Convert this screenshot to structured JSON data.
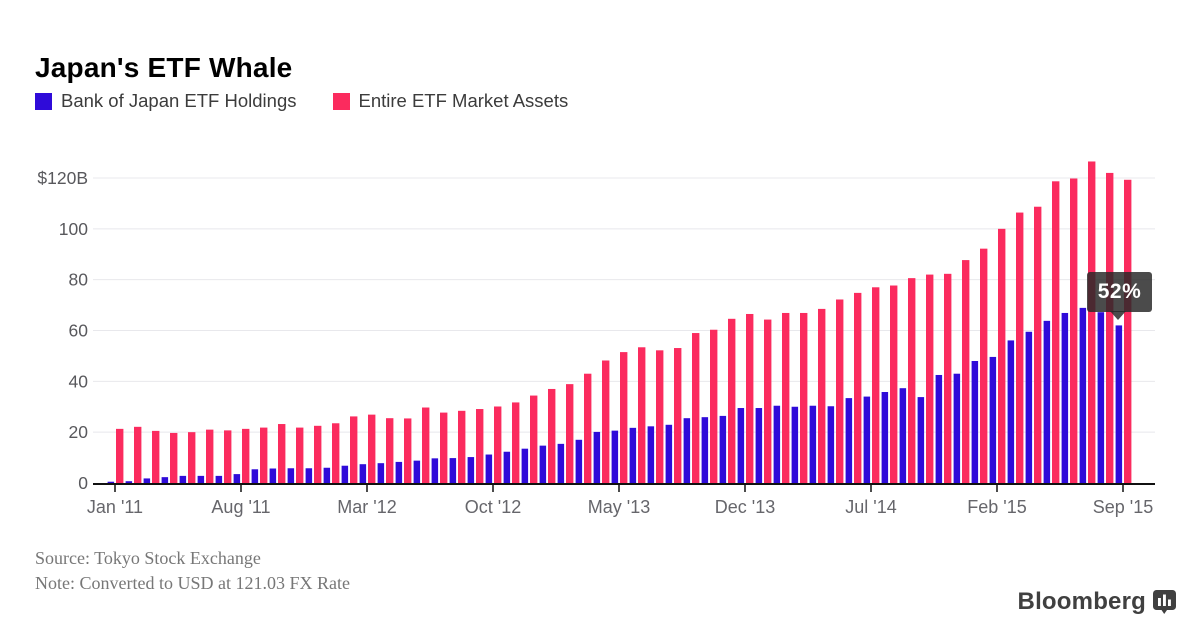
{
  "header": {
    "title": "Japan's ETF Whale"
  },
  "legend": [
    {
      "label": "Bank of Japan ETF Holdings",
      "color": "#2f0bd9"
    },
    {
      "label": "Entire ETF Market Assets",
      "color": "#fb2b5e"
    }
  ],
  "chart_data": {
    "type": "bar",
    "title": "Japan's ETF Whale",
    "xlabel": "",
    "ylabel": "USD billions",
    "ylim": [
      0,
      130
    ],
    "grid": "horizontal",
    "legend_position": "top-left",
    "x": [
      "Jan '11",
      "Feb '11",
      "Mar '11",
      "Apr '11",
      "May '11",
      "Jun '11",
      "Jul '11",
      "Aug '11",
      "Sep '11",
      "Oct '11",
      "Nov '11",
      "Dec '11",
      "Jan '12",
      "Feb '12",
      "Mar '12",
      "Apr '12",
      "May '12",
      "Jun '12",
      "Jul '12",
      "Aug '12",
      "Sep '12",
      "Oct '12",
      "Nov '12",
      "Dec '12",
      "Jan '13",
      "Feb '13",
      "Mar '13",
      "Apr '13",
      "May '13",
      "Jun '13",
      "Jul '13",
      "Aug '13",
      "Sep '13",
      "Oct '13",
      "Nov '13",
      "Dec '13",
      "Jan '14",
      "Feb '14",
      "Mar '14",
      "Apr '14",
      "May '14",
      "Jun '14",
      "Jul '14",
      "Aug '14",
      "Sep '14",
      "Oct '14",
      "Nov '14",
      "Dec '14",
      "Jan '15",
      "Feb '15",
      "Mar '15",
      "Apr '15",
      "May '15",
      "Jun '15",
      "Jul '15",
      "Aug '15",
      "Sep '15"
    ],
    "series": [
      {
        "name": "Bank of Japan ETF Holdings",
        "color": "#2f0bd9",
        "values": [
          0.5,
          0.7,
          1.8,
          2.3,
          2.8,
          2.8,
          2.8,
          3.5,
          5.4,
          5.7,
          5.8,
          5.8,
          6.0,
          6.8,
          7.4,
          7.8,
          8.3,
          8.8,
          9.7,
          9.8,
          10.2,
          11.2,
          12.3,
          13.5,
          14.7,
          15.4,
          17.0,
          20.1,
          20.6,
          21.7,
          22.3,
          22.9,
          25.5,
          25.9,
          26.4,
          29.5,
          29.5,
          30.4,
          30.0,
          30.4,
          30.2,
          33.4,
          34.0,
          35.8,
          37.3,
          33.8,
          42.5,
          43.0,
          48.0,
          49.6,
          56.1,
          59.5,
          63.8,
          66.9,
          68.9,
          67.2,
          62.0
        ]
      },
      {
        "name": "Entire ETF Market Assets",
        "color": "#fb2b5e",
        "values": [
          21.3,
          22.1,
          20.5,
          19.7,
          20.0,
          21.0,
          20.7,
          21.3,
          21.8,
          23.2,
          21.8,
          22.5,
          23.5,
          26.2,
          26.9,
          25.5,
          25.4,
          29.7,
          27.7,
          28.4,
          29.1,
          30.1,
          31.7,
          34.4,
          37.0,
          38.9,
          43.0,
          48.2,
          51.5,
          53.4,
          52.2,
          53.1,
          59.0,
          60.3,
          64.6,
          66.5,
          64.3,
          66.9,
          66.9,
          68.5,
          72.2,
          74.8,
          77.0,
          77.7,
          80.6,
          82.0,
          82.3,
          87.7,
          92.2,
          100.0,
          106.4,
          108.7,
          118.7,
          119.8,
          126.5,
          122.0,
          119.3
        ]
      }
    ],
    "y_ticks": [
      {
        "value": 120,
        "label": "$120B"
      },
      {
        "value": 100,
        "label": "100"
      },
      {
        "value": 80,
        "label": "80"
      },
      {
        "value": 60,
        "label": "60"
      },
      {
        "value": 40,
        "label": "40"
      },
      {
        "value": 20,
        "label": "20"
      },
      {
        "value": 0,
        "label": "0"
      }
    ],
    "x_ticks": [
      {
        "index": 0,
        "label": "Jan '11"
      },
      {
        "index": 7,
        "label": "Aug '11"
      },
      {
        "index": 14,
        "label": "Mar '12"
      },
      {
        "index": 21,
        "label": "Oct '12"
      },
      {
        "index": 28,
        "label": "May '13"
      },
      {
        "index": 35,
        "label": "Dec '13"
      },
      {
        "index": 42,
        "label": "Jul '14"
      },
      {
        "index": 49,
        "label": "Feb '15"
      },
      {
        "index": 56,
        "label": "Sep '15"
      }
    ],
    "annotation": {
      "label": "52%",
      "x": "Sep '15",
      "series": "Bank of Japan ETF Holdings",
      "meaning": "BOJ holdings as share of entire ETF market"
    }
  },
  "footer": {
    "source": "Source: Tokyo Stock Exchange",
    "note": "Note: Converted to USD at 121.03 FX Rate"
  },
  "branding": {
    "name": "Bloomberg",
    "icon": "bar-chart-bubble-icon"
  }
}
